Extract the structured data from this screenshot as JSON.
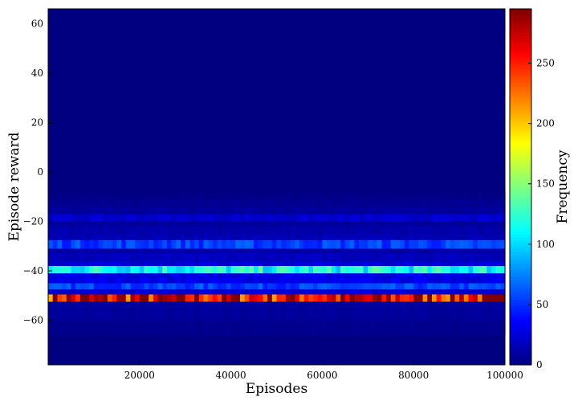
{
  "chart_data": {
    "type": "heatmap",
    "title": "",
    "xlabel": "Episodes",
    "ylabel": "Episode reward",
    "xlim": [
      0,
      100000
    ],
    "ylim": [
      -78,
      66
    ],
    "xticks": [
      20000,
      40000,
      60000,
      80000,
      100000
    ],
    "xtick_labels": [
      "20000",
      "40000",
      "60000",
      "80000",
      "100000"
    ],
    "yticks": [
      60,
      40,
      20,
      0,
      -20,
      -40,
      -60
    ],
    "ytick_labels": [
      "60",
      "40",
      "20",
      "0",
      "−20",
      "−40",
      "−60"
    ],
    "colormap": "jet",
    "colorbar": {
      "label": "Frequency",
      "range": [
        0,
        295
      ],
      "ticks": [
        0,
        50,
        100,
        150,
        200,
        250
      ],
      "tick_labels": [
        "0",
        "50",
        "100",
        "150",
        "200",
        "250"
      ]
    },
    "columns": 100,
    "reward_bands": [
      {
        "y0": -52.5,
        "y1": -49.5,
        "frequency": 265
      },
      {
        "y0": -49.5,
        "y1": -47.5,
        "frequency": 25
      },
      {
        "y0": -47.5,
        "y1": -45.0,
        "frequency": 55
      },
      {
        "y0": -45.0,
        "y1": -42.5,
        "frequency": 30
      },
      {
        "y0": -42.5,
        "y1": -41.0,
        "frequency": 30
      },
      {
        "y0": -41.0,
        "y1": -38.0,
        "frequency": 115
      },
      {
        "y0": -38.0,
        "y1": -36.0,
        "frequency": 25
      },
      {
        "y0": -36.0,
        "y1": -33.0,
        "frequency": 18
      },
      {
        "y0": -33.0,
        "y1": -31.0,
        "frequency": 12
      },
      {
        "y0": -31.0,
        "y1": -27.5,
        "frequency": 55
      },
      {
        "y0": -27.5,
        "y1": -25.0,
        "frequency": 15
      },
      {
        "y0": -25.0,
        "y1": -22.0,
        "frequency": 12
      },
      {
        "y0": -22.0,
        "y1": -20.0,
        "frequency": 8
      },
      {
        "y0": -20.0,
        "y1": -17.0,
        "frequency": 22
      },
      {
        "y0": -17.0,
        "y1": -14.0,
        "frequency": 8
      },
      {
        "y0": -14.0,
        "y1": -11.0,
        "frequency": 5
      },
      {
        "y0": -11.0,
        "y1": -8.0,
        "frequency": 2
      },
      {
        "y0": -60.0,
        "y1": -52.5,
        "frequency": 8
      },
      {
        "y0": -66.0,
        "y1": -60.0,
        "frequency": 4
      }
    ]
  }
}
